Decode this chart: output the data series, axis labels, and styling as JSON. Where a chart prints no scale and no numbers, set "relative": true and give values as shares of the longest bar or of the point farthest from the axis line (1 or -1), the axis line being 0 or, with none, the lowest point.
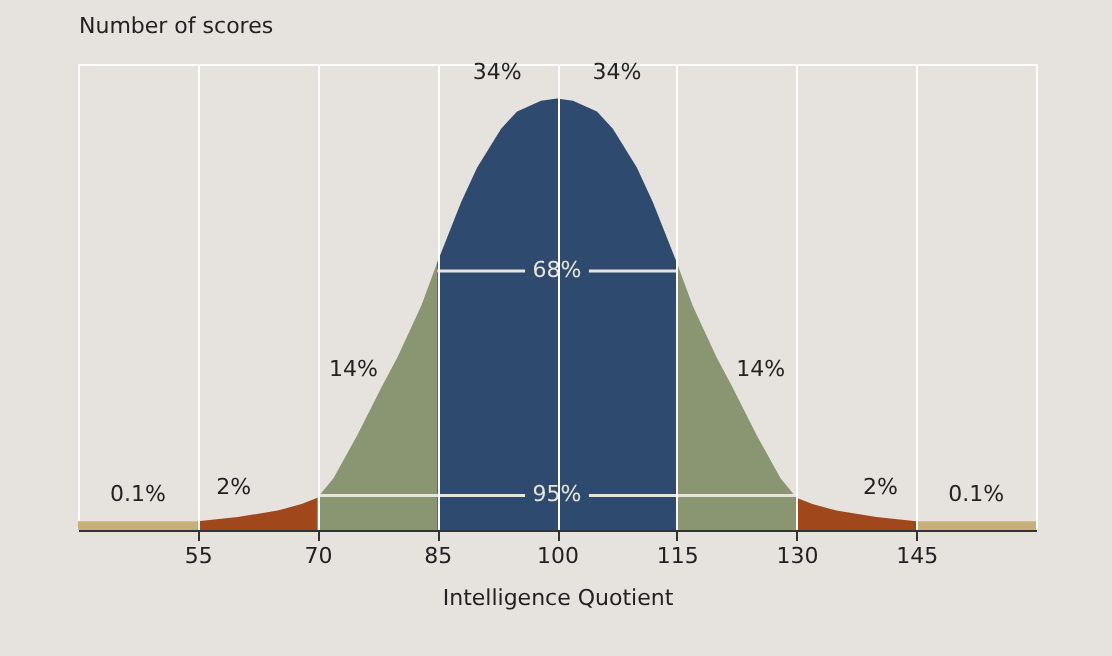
{
  "chart_data": {
    "type": "area",
    "relative": true,
    "xlabel": "Intelligence Quotient",
    "ylabel": "Number of scores",
    "xlim": [
      40,
      160
    ],
    "xticks": [
      55,
      70,
      85,
      100,
      115,
      130,
      145
    ],
    "grid": "x",
    "series": [
      {
        "color": "#c8ae78",
        "x": [
          40,
          55
        ],
        "values": [
          0.02,
          0.02
        ]
      },
      {
        "color": "#a0481c",
        "x": [
          55,
          60,
          65,
          68,
          70
        ],
        "values": [
          0.02,
          0.03,
          0.045,
          0.06,
          0.075
        ]
      },
      {
        "color": "#8a9672",
        "x": [
          70,
          72,
          75,
          78,
          80,
          83,
          85
        ],
        "values": [
          0.075,
          0.12,
          0.22,
          0.33,
          0.4,
          0.52,
          0.62
        ]
      },
      {
        "color": "#2e4a6e",
        "x": [
          85,
          88,
          90,
          93,
          95,
          98,
          100
        ],
        "values": [
          0.62,
          0.76,
          0.84,
          0.93,
          0.97,
          0.995,
          1
        ]
      },
      {
        "color": "#2e4a6e",
        "x": [
          100,
          102,
          105,
          107,
          110,
          112,
          115
        ],
        "values": [
          1,
          0.995,
          0.97,
          0.93,
          0.84,
          0.76,
          0.62
        ]
      },
      {
        "color": "#8a9672",
        "x": [
          115,
          117,
          120,
          122,
          125,
          128,
          130
        ],
        "values": [
          0.62,
          0.52,
          0.4,
          0.33,
          0.22,
          0.12,
          0.075
        ]
      },
      {
        "color": "#a0481c",
        "x": [
          130,
          132,
          135,
          140,
          145
        ],
        "values": [
          0.075,
          0.06,
          0.045,
          0.03,
          0.02
        ]
      },
      {
        "color": "#c8ae78",
        "x": [
          145,
          160
        ],
        "values": [
          0.02,
          0.02
        ]
      },
      {
        "type": "line",
        "color": "#e8e4dc",
        "x": [
          85,
          96,
          100,
          104,
          115
        ],
        "values": [
          0.6,
          0.6,
          null,
          0.6,
          0.6
        ]
      },
      {
        "type": "line",
        "color": "#e8e4dc",
        "x": [
          70,
          96,
          100,
          104,
          130
        ],
        "values": [
          0.08,
          0.08,
          null,
          0.08,
          0.08
        ]
      }
    ],
    "annotations": [
      "0.1%",
      "2%",
      "14%",
      "34%",
      "34%",
      "14%",
      "2%",
      "0.1%",
      "68%",
      "95%"
    ]
  }
}
